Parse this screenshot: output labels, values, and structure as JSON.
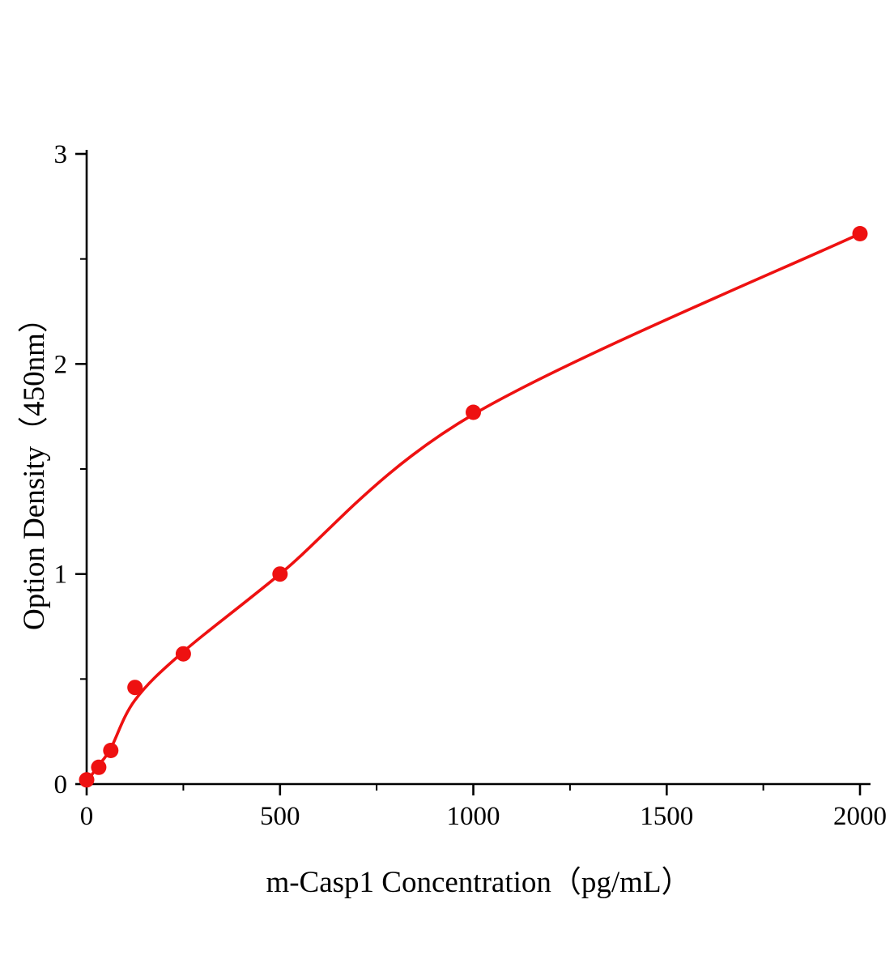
{
  "chart_data": {
    "type": "scatter",
    "title": "",
    "xlabel": "m-Casp1 Concentration（pg/mL）",
    "ylabel": "Option Density（450nm）",
    "xlim": [
      0,
      2000
    ],
    "ylim": [
      0,
      3
    ],
    "xticks": [
      0,
      500,
      1000,
      1500,
      2000
    ],
    "xticks_minor": [
      250,
      750,
      1250,
      1750
    ],
    "yticks": [
      0,
      1,
      2,
      3
    ],
    "yticks_minor": [
      0.5,
      1.5,
      2.5
    ],
    "grid": false,
    "legend": "none",
    "accent_color": "#ee1111",
    "axis_color": "#000000",
    "points": [
      {
        "x": 0,
        "y": 0.02
      },
      {
        "x": 31.25,
        "y": 0.08
      },
      {
        "x": 62.5,
        "y": 0.16
      },
      {
        "x": 125,
        "y": 0.46
      },
      {
        "x": 250,
        "y": 0.62
      },
      {
        "x": 500,
        "y": 1.0
      },
      {
        "x": 1000,
        "y": 1.77
      },
      {
        "x": 2000,
        "y": 2.62
      }
    ],
    "curve": [
      {
        "x": 0,
        "y": 0.01
      },
      {
        "x": 31.25,
        "y": 0.09
      },
      {
        "x": 62.5,
        "y": 0.17
      },
      {
        "x": 125,
        "y": 0.4
      },
      {
        "x": 250,
        "y": 0.63
      },
      {
        "x": 500,
        "y": 1.0
      },
      {
        "x": 1000,
        "y": 1.76
      },
      {
        "x": 2000,
        "y": 2.62
      }
    ]
  }
}
